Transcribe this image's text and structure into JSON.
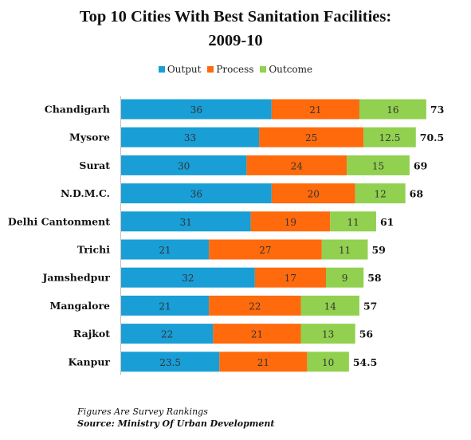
{
  "title_line1": "Top 10 Cities With Best Sanitation Facilities:",
  "title_line2": "2009-10",
  "footnote": "Figures Are Survey Rankings",
  "source": "Source: Ministry Of Urban Development",
  "chart_data": {
    "type": "bar",
    "orientation": "horizontal",
    "stacked": true,
    "title": "Top 10 Cities With Best Sanitation Facilities: 2009-10",
    "xlabel": "",
    "ylabel": "",
    "legend_position": "top",
    "grid": false,
    "categories": [
      "Chandigarh",
      "Mysore",
      "Surat",
      "N.D.M.C.",
      "Delhi Cantonment",
      "Trichi",
      "Jamshedpur",
      "Mangalore",
      "Rajkot",
      "Kanpur"
    ],
    "series": [
      {
        "name": "Output",
        "color": "#199ED6",
        "values": [
          36,
          33,
          30,
          36,
          31,
          21,
          32,
          21,
          22,
          23.5
        ],
        "labels": [
          "36",
          "33",
          "30",
          "36",
          "31",
          "21",
          "32",
          "21",
          "22",
          "23.5"
        ]
      },
      {
        "name": "Process",
        "color": "#FF6A0D",
        "values": [
          21,
          25,
          24,
          20,
          19,
          27,
          17,
          22,
          21,
          21
        ],
        "labels": [
          "21",
          "25",
          "24",
          "20",
          "19",
          "27",
          "17",
          "22",
          "21",
          "21"
        ]
      },
      {
        "name": "Outcome",
        "color": "#92D050",
        "values": [
          16,
          12.5,
          15,
          12,
          11,
          11,
          9,
          14,
          13,
          10
        ],
        "labels": [
          "16",
          "12.5",
          "15",
          "12",
          "11",
          "11",
          "9",
          "14",
          "13",
          "10"
        ]
      }
    ],
    "totals": [
      "73",
      "70.5",
      "69",
      "68",
      "61",
      "59",
      "58",
      "57",
      "56",
      "54.5"
    ]
  }
}
